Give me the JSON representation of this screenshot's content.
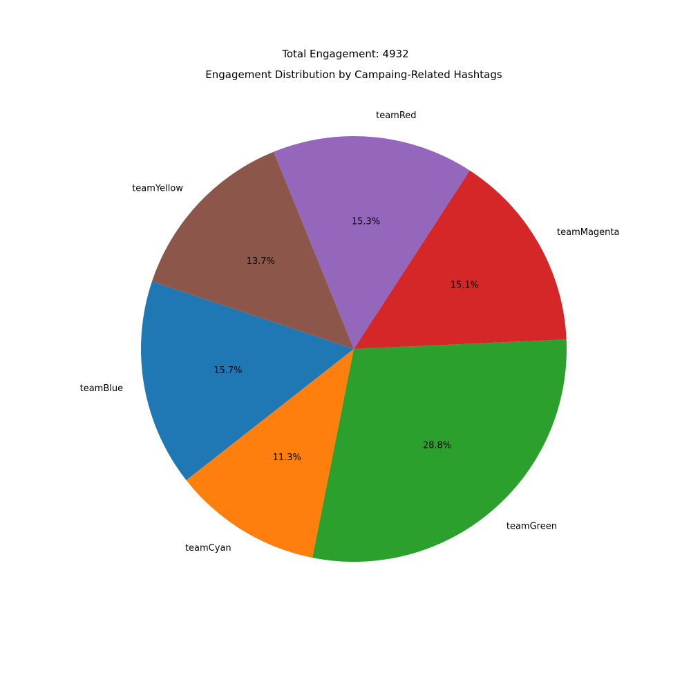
{
  "chart_data": {
    "type": "pie",
    "suptitle": "Total Engagement: 4932",
    "title": "Engagement Distribution by Campaing-Related Hashtags",
    "start_angle_deg": 161.5,
    "direction": "counterclockwise",
    "slices": [
      {
        "label": "teamBlue",
        "percent": 15.7,
        "pct_label": "15.7%",
        "color": "#1f77b4"
      },
      {
        "label": "teamCyan",
        "percent": 11.3,
        "pct_label": "11.3%",
        "color": "#ff7f0e"
      },
      {
        "label": "teamGreen",
        "percent": 28.8,
        "pct_label": "28.8%",
        "color": "#2ca02c"
      },
      {
        "label": "teamMagenta",
        "percent": 15.1,
        "pct_label": "15.1%",
        "color": "#d62728"
      },
      {
        "label": "teamRed",
        "percent": 15.3,
        "pct_label": "15.3%",
        "color": "#9467bd"
      },
      {
        "label": "teamYellow",
        "percent": 13.7,
        "pct_label": "13.7%",
        "color": "#8c564b"
      }
    ]
  }
}
